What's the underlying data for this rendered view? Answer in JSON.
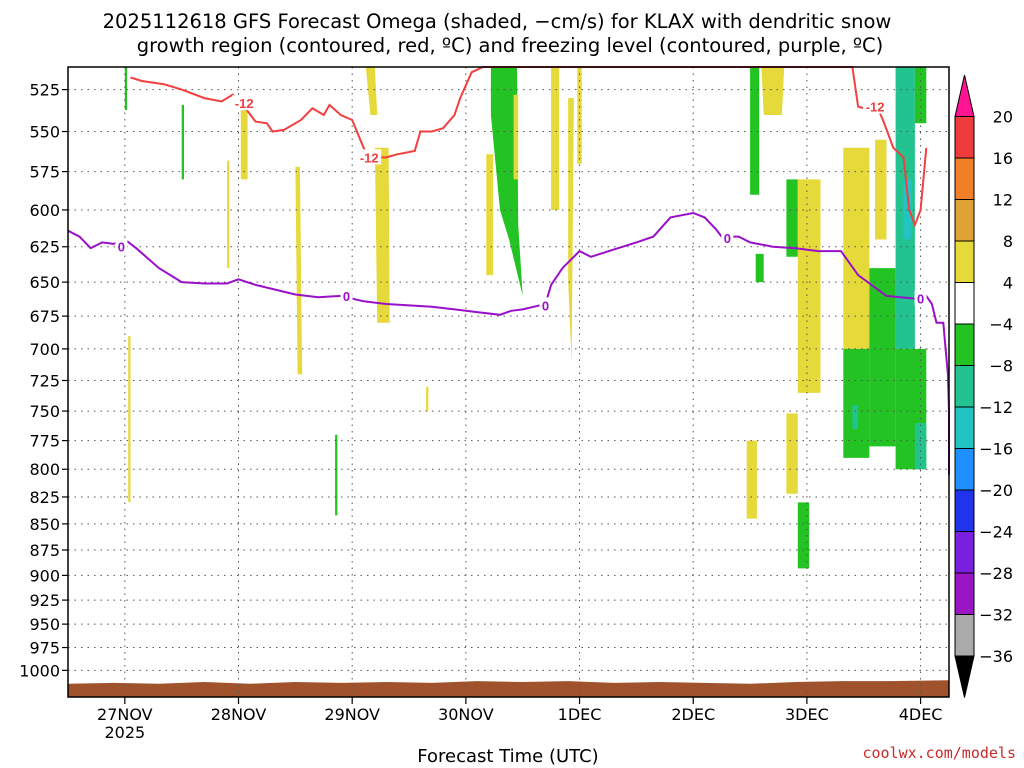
{
  "chart_data": {
    "type": "heatmap",
    "title_line1": "2025112618 GFS Forecast Omega (shaded, −cm/s) for KLAX with dendritic snow",
    "title_line2": "growth region (contoured, red, ºC) and freezing level (contoured, purple, ºC)",
    "xlabel": "Forecast Time (UTC)",
    "credit": "coolwx.com/models",
    "y_ticks": [
      525,
      550,
      575,
      600,
      625,
      650,
      675,
      700,
      725,
      750,
      775,
      800,
      825,
      850,
      875,
      900,
      925,
      950,
      975,
      1000
    ],
    "x_ticks": [
      "27NOV",
      "28NOV",
      "29NOV",
      "30NOV",
      "1DEC",
      "2DEC",
      "3DEC",
      "4DEC"
    ],
    "x_tick_sublabel": "2025",
    "x_tick_days": [
      0.5,
      1.5,
      2.5,
      3.5,
      4.5,
      5.5,
      6.5,
      7.5
    ],
    "xlim": [
      0,
      7.75
    ],
    "ylim": [
      1030,
      512
    ],
    "colorbar": {
      "labels": [
        "20",
        "16",
        "12",
        "8",
        "4",
        "−4",
        "−8",
        "−12",
        "−16",
        "−20",
        "−24",
        "−28",
        "−32",
        "−36"
      ],
      "colors": [
        "#ff1493",
        "#ee3b3b",
        "#f07f28",
        "#dfa333",
        "#e6d93a",
        "#ffffff",
        "#22c322",
        "#22c38f",
        "#22c3c3",
        "#1e90ff",
        "#2233ee",
        "#7a1fe0",
        "#9a16c5",
        "#aaaaaa",
        "#000000"
      ]
    },
    "colors": {
      "dgz_contour": "#f24040",
      "freezing_contour": "#9a10c8",
      "terrain": "#a0522d",
      "credit": "#cc2a2a"
    },
    "dgz_contour_label": "-12",
    "freezing_contour_label": "0",
    "dgz_contour": [
      [
        0.55,
        518
      ],
      [
        0.65,
        520
      ],
      [
        0.85,
        522
      ],
      [
        1.0,
        525
      ],
      [
        1.2,
        530
      ],
      [
        1.35,
        532
      ],
      [
        1.45,
        528
      ],
      [
        1.55,
        535
      ],
      [
        1.65,
        544
      ],
      [
        1.75,
        545
      ],
      [
        1.8,
        550
      ],
      [
        1.9,
        549
      ],
      [
        2.05,
        543
      ],
      [
        2.15,
        536
      ],
      [
        2.25,
        540
      ],
      [
        2.3,
        534
      ],
      [
        2.4,
        540
      ],
      [
        2.5,
        543
      ],
      [
        2.6,
        560
      ],
      [
        2.65,
        566
      ],
      [
        2.72,
        566
      ],
      [
        2.8,
        566
      ],
      [
        2.9,
        564
      ],
      [
        3.05,
        562
      ],
      [
        3.1,
        550
      ],
      [
        3.2,
        550
      ],
      [
        3.3,
        548
      ],
      [
        3.4,
        540
      ],
      [
        3.45,
        530
      ],
      [
        3.55,
        515
      ],
      [
        3.65,
        512
      ],
      [
        6.9,
        512
      ],
      [
        6.95,
        535
      ],
      [
        7.05,
        537
      ],
      [
        7.12,
        535
      ],
      [
        7.18,
        545
      ],
      [
        7.26,
        560
      ],
      [
        7.35,
        566
      ],
      [
        7.4,
        600
      ],
      [
        7.45,
        610
      ],
      [
        7.5,
        600
      ],
      [
        7.55,
        560
      ]
    ],
    "freezing_contour": [
      [
        0.0,
        614
      ],
      [
        0.1,
        618
      ],
      [
        0.2,
        626
      ],
      [
        0.3,
        622
      ],
      [
        0.4,
        623
      ],
      [
        0.5,
        620
      ],
      [
        0.6,
        626
      ],
      [
        0.8,
        640
      ],
      [
        1.0,
        650
      ],
      [
        1.2,
        651
      ],
      [
        1.4,
        651
      ],
      [
        1.5,
        648
      ],
      [
        1.65,
        652
      ],
      [
        1.8,
        655
      ],
      [
        2.0,
        659
      ],
      [
        2.2,
        661
      ],
      [
        2.4,
        660
      ],
      [
        2.6,
        664
      ],
      [
        2.8,
        666
      ],
      [
        3.0,
        667
      ],
      [
        3.2,
        668
      ],
      [
        3.4,
        670
      ],
      [
        3.6,
        672
      ],
      [
        3.8,
        674
      ],
      [
        3.9,
        671
      ],
      [
        4.0,
        670
      ],
      [
        4.1,
        668
      ],
      [
        4.2,
        666
      ],
      [
        4.25,
        652
      ],
      [
        4.35,
        640
      ],
      [
        4.5,
        628
      ],
      [
        4.6,
        632
      ],
      [
        4.8,
        627
      ],
      [
        5.0,
        622
      ],
      [
        5.15,
        618
      ],
      [
        5.3,
        605
      ],
      [
        5.5,
        602
      ],
      [
        5.6,
        605
      ],
      [
        5.7,
        613
      ],
      [
        5.75,
        618
      ],
      [
        5.9,
        618
      ],
      [
        6.0,
        622
      ],
      [
        6.2,
        625
      ],
      [
        6.4,
        626
      ],
      [
        6.6,
        628
      ],
      [
        6.8,
        628
      ],
      [
        6.95,
        645
      ],
      [
        7.2,
        660
      ],
      [
        7.45,
        662
      ],
      [
        7.55,
        660
      ],
      [
        7.6,
        666
      ],
      [
        7.64,
        680
      ],
      [
        7.7,
        680
      ],
      [
        7.72,
        700
      ],
      [
        7.74,
        720
      ],
      [
        7.76,
        750
      ],
      [
        7.8,
        790
      ],
      [
        7.85,
        805
      ]
    ],
    "shaded_regions": [
      {
        "color": "#22c322",
        "poly": [
          [
            0.5,
            512
          ],
          [
            0.52,
            512
          ],
          [
            0.52,
            537
          ],
          [
            0.5,
            537
          ]
        ]
      },
      {
        "color": "#22c322",
        "poly": [
          [
            1.0,
            534
          ],
          [
            1.02,
            534
          ],
          [
            1.02,
            580
          ],
          [
            1.0,
            580
          ]
        ]
      },
      {
        "color": "#e6d93a",
        "poly": [
          [
            1.4,
            568
          ],
          [
            1.42,
            568
          ],
          [
            1.42,
            640
          ],
          [
            1.4,
            640
          ]
        ]
      },
      {
        "color": "#e6d93a",
        "poly": [
          [
            1.52,
            530
          ],
          [
            1.58,
            530
          ],
          [
            1.58,
            580
          ],
          [
            1.52,
            580
          ]
        ]
      },
      {
        "color": "#e6d93a",
        "poly": [
          [
            2.0,
            572
          ],
          [
            2.04,
            572
          ],
          [
            2.06,
            720
          ],
          [
            2.02,
            720
          ]
        ]
      },
      {
        "color": "#22c322",
        "poly": [
          [
            2.35,
            770
          ],
          [
            2.37,
            770
          ],
          [
            2.37,
            842
          ],
          [
            2.35,
            842
          ]
        ]
      },
      {
        "color": "#e6d93a",
        "poly": [
          [
            2.62,
            512
          ],
          [
            2.7,
            512
          ],
          [
            2.72,
            540
          ],
          [
            2.66,
            540
          ]
        ]
      },
      {
        "color": "#e6d93a",
        "poly": [
          [
            2.7,
            560
          ],
          [
            2.82,
            560
          ],
          [
            2.83,
            680
          ],
          [
            2.72,
            680
          ]
        ]
      },
      {
        "color": "#e6d93a",
        "poly": [
          [
            3.68,
            564
          ],
          [
            3.74,
            564
          ],
          [
            3.74,
            645
          ],
          [
            3.68,
            645
          ]
        ]
      },
      {
        "color": "#22c322",
        "poly": [
          [
            3.72,
            512
          ],
          [
            3.95,
            512
          ],
          [
            3.96,
            610
          ],
          [
            4.0,
            660
          ],
          [
            3.88,
            620
          ],
          [
            3.8,
            600
          ],
          [
            3.72,
            540
          ]
        ]
      },
      {
        "color": "#e6d93a",
        "poly": [
          [
            3.92,
            528
          ],
          [
            3.96,
            528
          ],
          [
            3.96,
            580
          ],
          [
            3.92,
            580
          ]
        ]
      },
      {
        "color": "#e6d93a",
        "poly": [
          [
            4.25,
            512
          ],
          [
            4.32,
            512
          ],
          [
            4.32,
            600
          ],
          [
            4.25,
            600
          ]
        ]
      },
      {
        "color": "#e6d93a",
        "poly": [
          [
            4.4,
            530
          ],
          [
            4.45,
            530
          ],
          [
            4.43,
            710
          ],
          [
            4.4,
            650
          ]
        ]
      },
      {
        "color": "#e6d93a",
        "poly": [
          [
            4.48,
            512
          ],
          [
            4.52,
            512
          ],
          [
            4.52,
            570
          ],
          [
            4.48,
            570
          ]
        ]
      },
      {
        "color": "#22c322",
        "poly": [
          [
            6.0,
            512
          ],
          [
            6.08,
            512
          ],
          [
            6.08,
            590
          ],
          [
            6.0,
            590
          ]
        ]
      },
      {
        "color": "#e6d93a",
        "poly": [
          [
            6.1,
            512
          ],
          [
            6.3,
            512
          ],
          [
            6.28,
            540
          ],
          [
            6.12,
            540
          ]
        ]
      },
      {
        "color": "#22c322",
        "poly": [
          [
            6.32,
            580
          ],
          [
            6.42,
            580
          ],
          [
            6.42,
            632
          ],
          [
            6.32,
            632
          ]
        ]
      },
      {
        "color": "#22c322",
        "poly": [
          [
            6.05,
            630
          ],
          [
            6.12,
            630
          ],
          [
            6.12,
            650
          ],
          [
            6.05,
            650
          ]
        ]
      },
      {
        "color": "#e6d93a",
        "poly": [
          [
            6.42,
            580
          ],
          [
            6.62,
            580
          ],
          [
            6.62,
            735
          ],
          [
            6.42,
            735
          ]
        ]
      },
      {
        "color": "#e6d93a",
        "poly": [
          [
            5.97,
            775
          ],
          [
            6.06,
            775
          ],
          [
            6.06,
            845
          ],
          [
            5.97,
            845
          ]
        ]
      },
      {
        "color": "#e6d93a",
        "poly": [
          [
            6.32,
            752
          ],
          [
            6.42,
            752
          ],
          [
            6.42,
            822
          ],
          [
            6.32,
            822
          ]
        ]
      },
      {
        "color": "#22c322",
        "poly": [
          [
            6.42,
            830
          ],
          [
            6.52,
            830
          ],
          [
            6.52,
            893
          ],
          [
            6.42,
            893
          ]
        ]
      },
      {
        "color": "#e6d93a",
        "poly": [
          [
            6.82,
            560
          ],
          [
            7.05,
            560
          ],
          [
            7.05,
            700
          ],
          [
            6.82,
            700
          ]
        ]
      },
      {
        "color": "#22c322",
        "poly": [
          [
            6.82,
            700
          ],
          [
            7.05,
            700
          ],
          [
            7.05,
            790
          ],
          [
            6.82,
            790
          ]
        ]
      },
      {
        "color": "#22c38f",
        "poly": [
          [
            6.9,
            745
          ],
          [
            6.95,
            745
          ],
          [
            6.95,
            765
          ],
          [
            6.9,
            765
          ]
        ]
      },
      {
        "color": "#e6d93a",
        "poly": [
          [
            7.1,
            555
          ],
          [
            7.2,
            555
          ],
          [
            7.2,
            620
          ],
          [
            7.1,
            620
          ]
        ]
      },
      {
        "color": "#22c322",
        "poly": [
          [
            7.05,
            640
          ],
          [
            7.28,
            640
          ],
          [
            7.28,
            780
          ],
          [
            7.05,
            780
          ]
        ]
      },
      {
        "color": "#22c38f",
        "poly": [
          [
            7.28,
            512
          ],
          [
            7.45,
            512
          ],
          [
            7.45,
            700
          ],
          [
            7.28,
            700
          ]
        ]
      },
      {
        "color": "#22c3c3",
        "poly": [
          [
            7.35,
            580
          ],
          [
            7.42,
            580
          ],
          [
            7.42,
            620
          ],
          [
            7.35,
            620
          ]
        ]
      },
      {
        "color": "#22c322",
        "poly": [
          [
            7.45,
            512
          ],
          [
            7.55,
            512
          ],
          [
            7.55,
            545
          ],
          [
            7.45,
            545
          ]
        ]
      },
      {
        "color": "#22c322",
        "poly": [
          [
            7.28,
            700
          ],
          [
            7.55,
            700
          ],
          [
            7.55,
            800
          ],
          [
            7.28,
            800
          ]
        ]
      },
      {
        "color": "#22c38f",
        "poly": [
          [
            7.45,
            760
          ],
          [
            7.55,
            760
          ],
          [
            7.55,
            800
          ],
          [
            7.45,
            800
          ]
        ]
      },
      {
        "color": "#e6d93a",
        "poly": [
          [
            0.53,
            690
          ],
          [
            0.55,
            690
          ],
          [
            0.55,
            830
          ],
          [
            0.53,
            830
          ]
        ]
      },
      {
        "color": "#e6d93a",
        "poly": [
          [
            3.15,
            730
          ],
          [
            3.17,
            730
          ],
          [
            3.17,
            750
          ],
          [
            3.15,
            750
          ]
        ]
      }
    ],
    "terrain_top": [
      [
        0.0,
        1015
      ],
      [
        0.4,
        1014
      ],
      [
        0.8,
        1015
      ],
      [
        1.2,
        1013
      ],
      [
        1.6,
        1015
      ],
      [
        2.0,
        1013
      ],
      [
        2.4,
        1014
      ],
      [
        2.8,
        1013
      ],
      [
        3.2,
        1014
      ],
      [
        3.6,
        1012
      ],
      [
        4.0,
        1013
      ],
      [
        4.4,
        1012
      ],
      [
        4.8,
        1014
      ],
      [
        5.2,
        1013
      ],
      [
        5.6,
        1014
      ],
      [
        6.0,
        1015
      ],
      [
        6.4,
        1013
      ],
      [
        6.8,
        1012
      ],
      [
        7.2,
        1012
      ],
      [
        7.75,
        1011
      ]
    ]
  }
}
